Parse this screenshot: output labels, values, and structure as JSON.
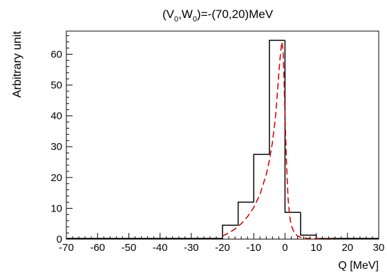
{
  "chart_data": {
    "type": "histogram",
    "title_prefix": "(V",
    "title_sub1": "0",
    "title_mid": ",W",
    "title_sub2": "0",
    "title_suffix": ")=-(70,20)MeV",
    "xlabel": "Q [MeV]",
    "ylabel": "Arbitrary unit",
    "xlim": [
      -70,
      30
    ],
    "ylim": [
      0,
      67.5
    ],
    "x_ticks": [
      -70,
      -60,
      -50,
      -40,
      -30,
      -20,
      -10,
      0,
      10,
      20,
      30
    ],
    "y_ticks": [
      0,
      10,
      20,
      30,
      40,
      50,
      60
    ],
    "grid": false,
    "histogram": {
      "name": "",
      "color": "#000000",
      "bin_edges": [
        -20,
        -15,
        -10,
        -5,
        0,
        5,
        10,
        15
      ],
      "values": [
        4.5,
        12.0,
        27.5,
        64.5,
        8.7,
        1.3,
        0.2
      ]
    },
    "curve": {
      "name": "",
      "color": "#dd0000",
      "style": "dashed",
      "x": [
        -20,
        -18,
        -16,
        -14,
        -12,
        -10,
        -8,
        -6,
        -5,
        -4,
        -3,
        -2.5,
        -2,
        -1.5,
        -1.2,
        -1,
        -0.6,
        -0.3,
        0,
        0.5,
        1,
        1.5,
        2,
        3,
        4,
        5,
        7,
        10,
        13,
        16
      ],
      "y": [
        1.0,
        2.0,
        3.3,
        5.0,
        7.3,
        10.3,
        14.5,
        21.0,
        25.5,
        31.5,
        40.0,
        46.5,
        53.5,
        59.5,
        62.5,
        64.0,
        61.0,
        52.0,
        40.0,
        24.0,
        13.0,
        7.5,
        4.5,
        2.0,
        1.0,
        0.6,
        0.3,
        0.15,
        0.05,
        0.0
      ]
    }
  }
}
